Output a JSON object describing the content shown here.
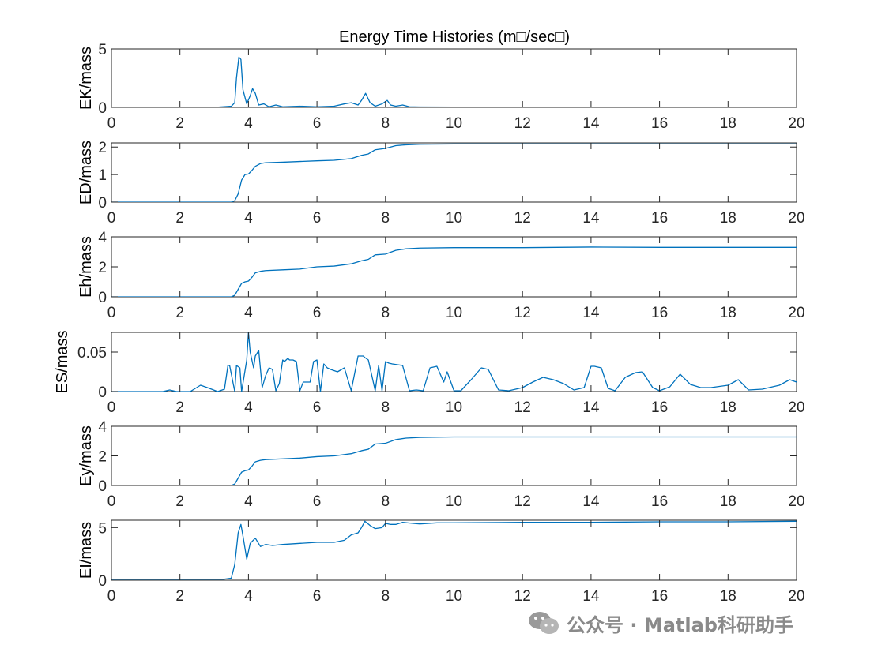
{
  "figure_title": "Energy Time Histories (m□/sec□)",
  "colors": {
    "line": "#0072BD",
    "axis": "#262626",
    "tick": "#262626"
  },
  "watermark": {
    "text": "公众号 · Matlab科研助手",
    "icon": "wechat-icon"
  },
  "chart_data": [
    {
      "type": "line",
      "ylabel": "EK/mass",
      "xlim": [
        0,
        20
      ],
      "ylim": [
        0,
        5
      ],
      "xticks": [
        0,
        2,
        4,
        6,
        8,
        10,
        12,
        14,
        16,
        18,
        20
      ],
      "yticks": [
        0,
        5
      ],
      "x": [
        0,
        3.0,
        3.5,
        3.6,
        3.65,
        3.72,
        3.78,
        3.84,
        3.95,
        4.05,
        4.12,
        4.2,
        4.3,
        4.45,
        4.6,
        4.8,
        5.0,
        5.5,
        6.0,
        6.5,
        6.8,
        7.0,
        7.2,
        7.3,
        7.42,
        7.55,
        7.7,
        7.9,
        8.05,
        8.15,
        8.3,
        8.5,
        8.7,
        9.0,
        10,
        12,
        14,
        16,
        18,
        20
      ],
      "y": [
        0,
        0,
        0.1,
        0.4,
        2.5,
        4.3,
        4.1,
        1.5,
        0.3,
        1.0,
        1.6,
        1.2,
        0.2,
        0.3,
        0.05,
        0.2,
        0.05,
        0.1,
        0.05,
        0.1,
        0.3,
        0.4,
        0.2,
        0.6,
        1.2,
        0.4,
        0.1,
        0.3,
        0.6,
        0.2,
        0.1,
        0.2,
        0.05,
        0.03,
        0.02,
        0.02,
        0.02,
        0.02,
        0.02,
        0.02
      ]
    },
    {
      "type": "line",
      "ylabel": "ED/mass",
      "xlim": [
        0,
        20
      ],
      "ylim": [
        0,
        2.15
      ],
      "xticks": [
        0,
        2,
        4,
        6,
        8,
        10,
        12,
        14,
        16,
        18,
        20
      ],
      "yticks": [
        0,
        1,
        2
      ],
      "x": [
        0,
        3.5,
        3.6,
        3.7,
        3.8,
        3.9,
        4.0,
        4.1,
        4.2,
        4.35,
        4.5,
        5.0,
        6.0,
        6.5,
        7.0,
        7.3,
        7.5,
        7.7,
        8.0,
        8.3,
        8.6,
        9.0,
        10,
        12,
        14,
        16,
        18,
        20
      ],
      "y": [
        0,
        0,
        0.05,
        0.3,
        0.8,
        1.0,
        1.02,
        1.15,
        1.3,
        1.4,
        1.43,
        1.45,
        1.5,
        1.52,
        1.58,
        1.7,
        1.75,
        1.9,
        1.95,
        2.05,
        2.08,
        2.1,
        2.11,
        2.11,
        2.11,
        2.11,
        2.11,
        2.11
      ]
    },
    {
      "type": "line",
      "ylabel": "Eh/mass",
      "xlim": [
        0,
        20
      ],
      "ylim": [
        0,
        4
      ],
      "xticks": [
        0,
        2,
        4,
        6,
        8,
        10,
        12,
        14,
        16,
        18,
        20
      ],
      "yticks": [
        0,
        2,
        4
      ],
      "x": [
        0,
        3.5,
        3.6,
        3.7,
        3.8,
        3.9,
        4.0,
        4.1,
        4.2,
        4.35,
        4.5,
        5.0,
        5.5,
        6.0,
        6.5,
        7.0,
        7.3,
        7.5,
        7.7,
        8.0,
        8.3,
        8.6,
        9.0,
        10,
        12,
        14,
        16,
        18,
        20
      ],
      "y": [
        0,
        0,
        0.1,
        0.5,
        0.9,
        1.0,
        1.05,
        1.3,
        1.6,
        1.7,
        1.75,
        1.8,
        1.85,
        2.0,
        2.05,
        2.2,
        2.4,
        2.5,
        2.8,
        2.85,
        3.1,
        3.2,
        3.25,
        3.28,
        3.28,
        3.32,
        3.3,
        3.3,
        3.3
      ]
    },
    {
      "type": "line",
      "ylabel": "ES/mass",
      "xlim": [
        0,
        20
      ],
      "ylim": [
        0,
        0.075
      ],
      "xticks": [
        0,
        2,
        4,
        6,
        8,
        10,
        12,
        14,
        16,
        18,
        20
      ],
      "yticks": [
        0,
        0.05
      ],
      "ytick_labels": [
        "0",
        "0.05"
      ],
      "x": [
        0,
        1.5,
        1.7,
        1.9,
        2.3,
        2.6,
        2.8,
        3.1,
        3.3,
        3.4,
        3.45,
        3.6,
        3.65,
        3.75,
        3.8,
        3.95,
        4.0,
        4.05,
        4.15,
        4.2,
        4.3,
        4.4,
        4.5,
        4.6,
        4.7,
        4.8,
        4.9,
        5.0,
        5.05,
        5.15,
        5.2,
        5.3,
        5.4,
        5.5,
        5.6,
        5.8,
        5.9,
        6.0,
        6.1,
        6.2,
        6.3,
        6.4,
        6.6,
        6.8,
        7.0,
        7.2,
        7.35,
        7.4,
        7.5,
        7.7,
        7.8,
        7.9,
        8.0,
        8.1,
        8.2,
        8.5,
        8.7,
        8.9,
        9.1,
        9.3,
        9.5,
        9.7,
        9.8,
        10.0,
        10.2,
        10.5,
        10.8,
        11.0,
        11.3,
        11.6,
        12.0,
        12.3,
        12.6,
        12.9,
        13.2,
        13.5,
        13.8,
        14.0,
        14.1,
        14.3,
        14.5,
        14.7,
        15.0,
        15.3,
        15.5,
        15.8,
        16.0,
        16.3,
        16.6,
        16.9,
        17.2,
        17.5,
        18.0,
        18.3,
        18.6,
        19.0,
        19.5,
        19.8,
        20.0
      ],
      "y": [
        0,
        0,
        0.002,
        0,
        0,
        0.008,
        0.005,
        0,
        0.003,
        0.033,
        0.033,
        0,
        0.033,
        0.03,
        0,
        0.04,
        0.075,
        0.05,
        0.03,
        0.045,
        0.052,
        0.005,
        0.02,
        0.03,
        0.028,
        0.001,
        0.01,
        0.04,
        0.038,
        0.042,
        0.04,
        0.04,
        0.038,
        0.001,
        0.012,
        0.012,
        0.038,
        0.04,
        0,
        0.035,
        0.03,
        0.028,
        0.025,
        0.03,
        0.001,
        0.045,
        0.045,
        0.043,
        0.04,
        0.001,
        0.033,
        0.001,
        0.038,
        0.036,
        0.035,
        0.033,
        0.001,
        0.002,
        0.001,
        0.03,
        0.032,
        0.012,
        0.025,
        0.001,
        0.001,
        0.015,
        0.03,
        0.028,
        0.002,
        0.001,
        0.005,
        0.012,
        0.018,
        0.015,
        0.01,
        0.002,
        0.005,
        0.032,
        0.032,
        0.03,
        0.004,
        0.001,
        0.018,
        0.024,
        0.025,
        0.005,
        0.001,
        0.006,
        0.022,
        0.009,
        0.005,
        0.005,
        0.008,
        0.015,
        0.002,
        0.003,
        0.008,
        0.015,
        0.012
      ]
    },
    {
      "type": "line",
      "ylabel": "Ey/mass",
      "xlim": [
        0,
        20
      ],
      "ylim": [
        0,
        4
      ],
      "xticks": [
        0,
        2,
        4,
        6,
        8,
        10,
        12,
        14,
        16,
        18,
        20
      ],
      "yticks": [
        0,
        2,
        4
      ],
      "x": [
        0,
        3.5,
        3.6,
        3.7,
        3.8,
        3.9,
        4.0,
        4.1,
        4.2,
        4.35,
        4.5,
        5.0,
        5.5,
        6.0,
        6.5,
        7.0,
        7.3,
        7.5,
        7.7,
        8.0,
        8.3,
        8.6,
        9.0,
        10,
        12,
        14,
        16,
        18,
        20
      ],
      "y": [
        0,
        0,
        0.1,
        0.5,
        0.9,
        1.0,
        1.05,
        1.3,
        1.6,
        1.7,
        1.75,
        1.8,
        1.85,
        1.95,
        2.0,
        2.15,
        2.35,
        2.45,
        2.8,
        2.85,
        3.1,
        3.2,
        3.25,
        3.28,
        3.28,
        3.28,
        3.28,
        3.28,
        3.28
      ]
    },
    {
      "type": "line",
      "ylabel": "EI/mass",
      "xlim": [
        0,
        20
      ],
      "ylim": [
        0,
        5.7
      ],
      "xticks": [
        0,
        2,
        4,
        6,
        8,
        10,
        12,
        14,
        16,
        18,
        20
      ],
      "yticks": [
        0,
        5
      ],
      "x": [
        0,
        3.3,
        3.5,
        3.6,
        3.7,
        3.78,
        3.85,
        3.95,
        4.05,
        4.2,
        4.35,
        4.5,
        4.7,
        5.0,
        5.5,
        6.0,
        6.5,
        6.8,
        7.0,
        7.2,
        7.3,
        7.4,
        7.55,
        7.7,
        7.9,
        8.0,
        8.15,
        8.3,
        8.5,
        8.8,
        9.0,
        9.5,
        10,
        12,
        14,
        16,
        18,
        20
      ],
      "y": [
        0.1,
        0.1,
        0.2,
        1.5,
        4.5,
        5.3,
        4.0,
        2.0,
        3.5,
        4.0,
        3.2,
        3.4,
        3.3,
        3.4,
        3.5,
        3.6,
        3.6,
        3.8,
        4.3,
        4.5,
        5.0,
        5.6,
        5.2,
        4.9,
        5.0,
        5.4,
        5.3,
        5.3,
        5.5,
        5.4,
        5.35,
        5.45,
        5.45,
        5.5,
        5.5,
        5.55,
        5.55,
        5.6
      ]
    }
  ]
}
